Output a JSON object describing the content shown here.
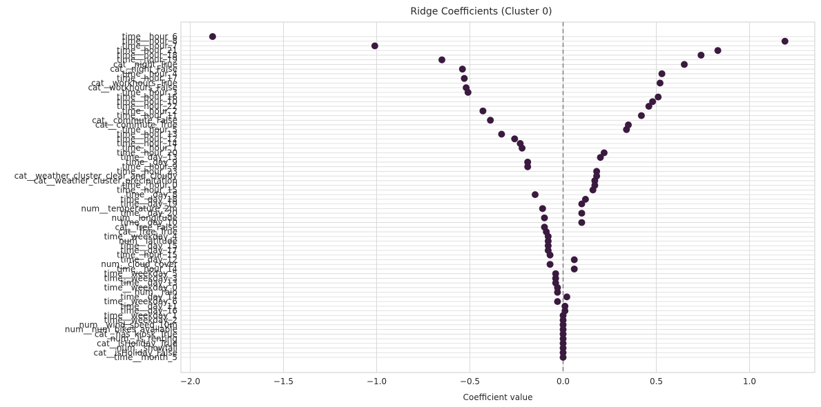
{
  "chart_data": {
    "type": "scatter",
    "title": "Ridge Coefficients (Cluster 0)",
    "xlabel": "Coefficient value",
    "ylabel": "",
    "xlim": [
      -2.05,
      1.35
    ],
    "xticks": [
      -2.0,
      -1.5,
      -1.0,
      -0.5,
      0.0,
      0.5,
      1.0
    ],
    "xtick_labels": [
      "−2.0",
      "−1.5",
      "−1.0",
      "−0.5",
      "0.0",
      "0.5",
      "1.0"
    ],
    "grid": true,
    "zero_line": true,
    "marker_color": "#3b1a3f",
    "features": [
      "time__hour_6",
      "time__hour_8",
      "time__hour_7",
      "time__hour_21",
      "time__hour_18",
      "time__hour_19",
      "cat__night_True",
      "cat__night_False",
      "time__hour_4",
      "time__hour_17",
      "cat__workhours_True",
      "cat__workhours_False",
      "time__hour_3",
      "time__hour_16",
      "time__hour_10",
      "time__hour_22",
      "time__hour_2",
      "time__hour_11",
      "cat__commute_False",
      "cat__commute_True",
      "time__hour_5",
      "time__hour_13",
      "time__hour_12",
      "time__hour_14",
      "time__hour_1",
      "time__hour_20",
      "time__day_13",
      "time__day_9",
      "time__hour_9",
      "time__hour_23",
      "cat__weather_cluster_clear_and_cloudy",
      "cat__weather_cluster_precipitation",
      "time__hour_0",
      "time__hour_15",
      "time__day_8",
      "time__day_18",
      "time__day_19",
      "num__temperature_2m",
      "time__day_20",
      "num__longitude",
      "time__day_10",
      "cat__free_False",
      "cat__free_True",
      "time__weekday_4",
      "num__latitude",
      "time__day_15",
      "time__day_17",
      "time__hour_15",
      "time__day_12",
      "num__cloud_cover",
      "time__hour_14",
      "time__weekday_5",
      "time__weekday_3",
      "time__day_13",
      "time__weekday_0",
      "num__rain",
      "time__day_14",
      "time__weekday_6",
      "time__day_11",
      "time__day_16",
      "time__weekday_1",
      "time__weekday_2",
      "num__wind_speed_10m",
      "num__num_bikes_available",
      "cat__has_kiosk_True",
      "num__is_renting",
      "cat__isHoliday_True",
      "num__snowfall",
      "cat__isHoliday_False",
      "time__month_5"
    ],
    "values": [
      -1.88,
      1.19,
      -1.01,
      0.83,
      0.74,
      -0.65,
      0.65,
      -0.54,
      0.53,
      -0.53,
      0.52,
      -0.52,
      -0.51,
      0.51,
      0.48,
      0.46,
      -0.43,
      0.42,
      -0.39,
      0.35,
      0.34,
      -0.33,
      -0.26,
      -0.23,
      -0.22,
      0.22,
      0.2,
      -0.19,
      -0.19,
      0.18,
      0.18,
      0.17,
      0.17,
      0.16,
      -0.15,
      0.12,
      0.1,
      -0.11,
      0.1,
      -0.1,
      0.1,
      -0.1,
      -0.09,
      -0.08,
      -0.08,
      -0.08,
      -0.08,
      -0.07,
      0.06,
      -0.07,
      0.06,
      -0.04,
      -0.04,
      -0.04,
      -0.03,
      -0.03,
      0.02,
      -0.03,
      0.01,
      0.01,
      0.0,
      0.0,
      0.0,
      0.0,
      0.0,
      0.0,
      0.0,
      0.0,
      0.0,
      0.0
    ]
  }
}
